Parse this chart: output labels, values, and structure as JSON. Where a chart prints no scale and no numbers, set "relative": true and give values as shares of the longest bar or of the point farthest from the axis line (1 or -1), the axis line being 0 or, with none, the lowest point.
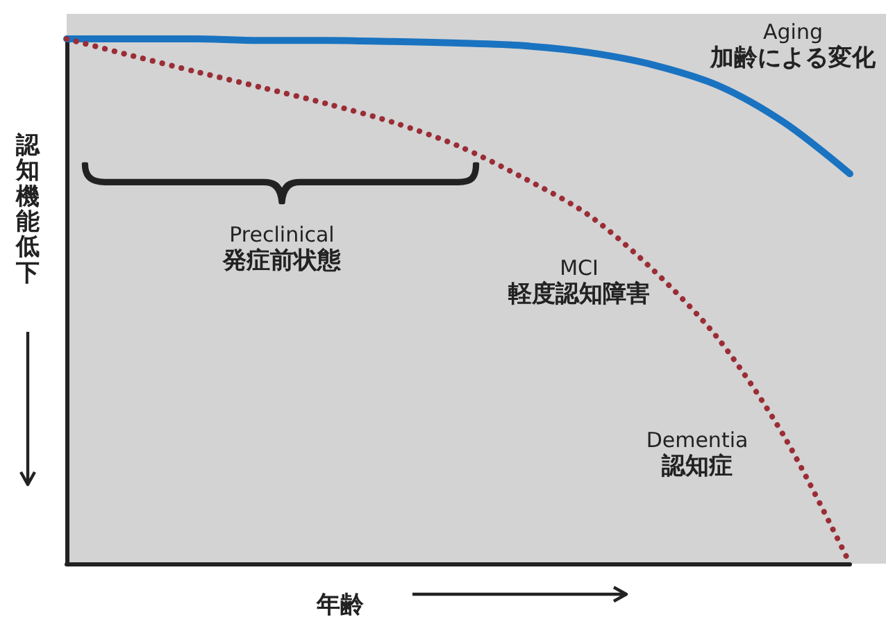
{
  "chart_data": {
    "type": "line",
    "relative": true,
    "xlabel": "年齢",
    "ylabel": "認知機能低下",
    "categories": [
      null,
      null,
      null,
      null,
      null,
      null,
      null,
      null,
      null,
      null,
      null,
      null,
      null
    ],
    "series": [
      {
        "color": "#1a73c0",
        "line_style": "solid",
        "values": [
          1,
          1,
          1,
          0.997,
          0.997,
          0.995,
          0.992,
          0.987,
          0.974,
          0.95,
          0.91,
          0.84,
          0.743
        ]
      },
      {
        "color": "#9b2d35",
        "line_style": "dotted",
        "values": [
          1,
          0.968,
          0.937,
          0.907,
          0.876,
          0.841,
          0.796,
          0.735,
          0.664,
          0.558,
          0.426,
          0.241,
          0
        ]
      }
    ],
    "annotations": [
      "Aging\n加齢による変化",
      "Preclinical\n発症前状態",
      "MCI\n軽度認知障害",
      "Dementia\n認知症"
    ],
    "grid": false,
    "marker": "none"
  }
}
